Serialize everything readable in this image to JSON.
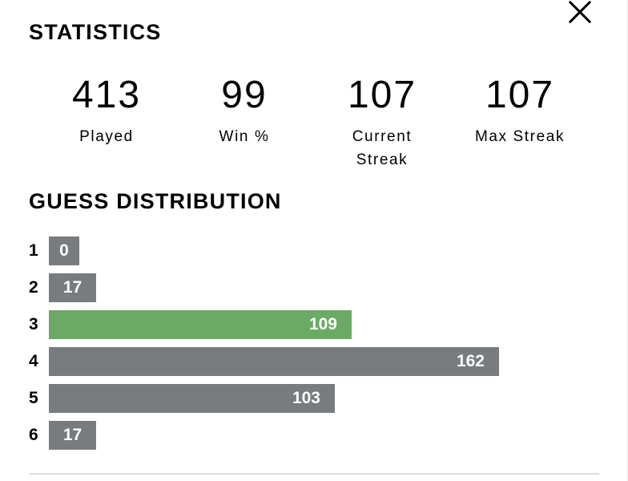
{
  "modal": {
    "close_label": "close",
    "close_icon": "close-icon"
  },
  "statistics": {
    "title": "STATISTICS",
    "items": [
      {
        "value": "413",
        "label": "Played"
      },
      {
        "value": "99",
        "label": "Win %"
      },
      {
        "value": "107",
        "label": "Current Streak"
      },
      {
        "value": "107",
        "label": "Max Streak"
      }
    ]
  },
  "distribution": {
    "title": "GUESS DISTRIBUTION",
    "max_count": 162,
    "highlight_guess": "3",
    "rows": [
      {
        "guess": "1",
        "count": 0
      },
      {
        "guess": "2",
        "count": 17
      },
      {
        "guess": "3",
        "count": 109
      },
      {
        "guess": "4",
        "count": 162
      },
      {
        "guess": "5",
        "count": 103
      },
      {
        "guess": "6",
        "count": 17
      }
    ]
  },
  "colors": {
    "bar_default": "#787c7e",
    "bar_highlight": "#6aaa64",
    "text": "#000000",
    "divider": "#dcdcdc"
  }
}
